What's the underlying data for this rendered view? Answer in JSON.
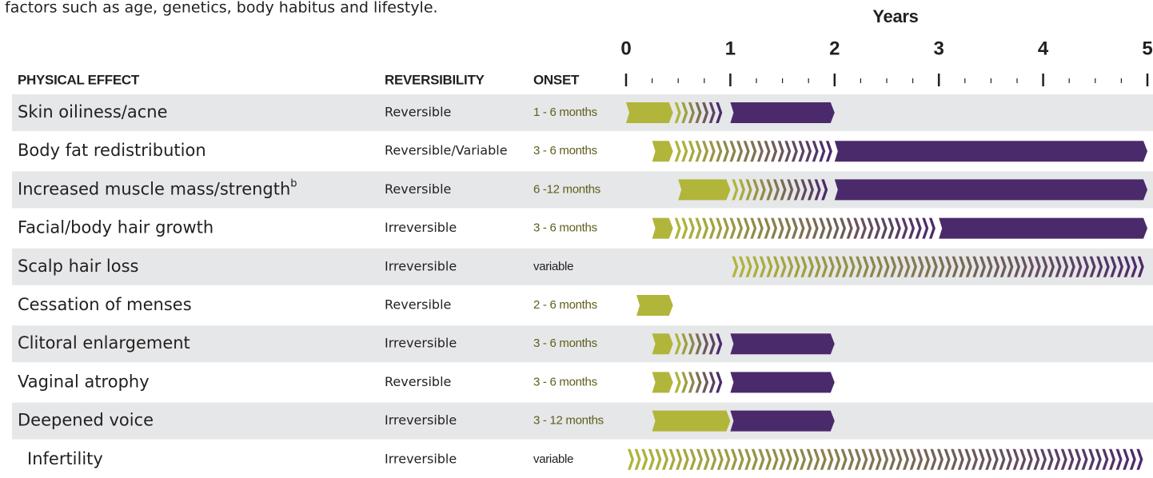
{
  "chart_data": {
    "type": "timeline",
    "intro": "factors such as age, genetics, body habitus and lifestyle.",
    "xlabel": "Years",
    "columns": [
      "PHYSICAL EFFECT",
      "REVERSIBILITY",
      "ONSET"
    ],
    "xlim": [
      0,
      5
    ],
    "xticks": [
      0,
      1,
      2,
      3,
      4,
      5
    ],
    "xminorticks": [
      0.25,
      0.5,
      0.75,
      1.25,
      1.5,
      1.75,
      2.25,
      2.5,
      2.75,
      3.25,
      3.5,
      3.75,
      4.25,
      4.5,
      4.75
    ],
    "colors": {
      "onset": "#b1b53a",
      "full": "#4b2a6b",
      "band": "#e6e7e8",
      "onset_text": "#5f5e1c"
    },
    "rows": [
      {
        "effect": "Skin oiliness/acne",
        "reversibility": "Reversible",
        "onset": "1 - 6 months",
        "onset_bar": [
          0,
          0.45
        ],
        "transition": [
          0.45,
          1
        ],
        "full": [
          1,
          2
        ]
      },
      {
        "effect": "Body fat redistribution",
        "reversibility": "Reversible/Variable",
        "onset": "3 - 6 months",
        "onset_bar": [
          0.25,
          0.45
        ],
        "transition": [
          0.45,
          2
        ],
        "full": [
          2,
          5
        ]
      },
      {
        "effect": "Increased muscle mass/strength",
        "note": "b",
        "reversibility": "Reversible",
        "onset": "6 -12 months",
        "onset_bar": [
          0.5,
          1
        ],
        "transition": [
          1,
          2
        ],
        "full": [
          2,
          5
        ]
      },
      {
        "effect": "Facial/body hair growth",
        "reversibility": "Irreversible",
        "onset": "3 - 6 months",
        "onset_bar": [
          0.25,
          0.45
        ],
        "transition": [
          0.45,
          3
        ],
        "full": [
          3,
          5
        ]
      },
      {
        "effect": "Scalp hair loss",
        "reversibility": "Irreversible",
        "onset": "variable",
        "onset_bar": null,
        "transition": [
          1,
          5
        ],
        "full": null
      },
      {
        "effect": "Cessation of menses",
        "reversibility": "Reversible",
        "onset": "2 - 6 months",
        "onset_bar": [
          0.1,
          0.45
        ],
        "transition": null,
        "full": null
      },
      {
        "effect": "Clitoral enlargement",
        "reversibility": "Irreversible",
        "onset": "3 - 6 months",
        "onset_bar": [
          0.25,
          0.45
        ],
        "transition": [
          0.45,
          1
        ],
        "full": [
          1,
          2
        ]
      },
      {
        "effect": "Vaginal atrophy",
        "reversibility": "Reversible",
        "onset": "3 - 6 months",
        "onset_bar": [
          0.25,
          0.45
        ],
        "transition": [
          0.45,
          1
        ],
        "full": [
          1,
          2
        ]
      },
      {
        "effect": "Deepened voice",
        "reversibility": "Irreversible",
        "onset": "3 - 12 months",
        "onset_bar": [
          0.25,
          1
        ],
        "transition": null,
        "full": [
          1,
          2
        ]
      },
      {
        "effect": "Infertility",
        "reversibility": "Irreversible",
        "onset": "variable",
        "onset_bar": null,
        "transition": [
          0,
          5
        ],
        "full": null
      }
    ]
  }
}
